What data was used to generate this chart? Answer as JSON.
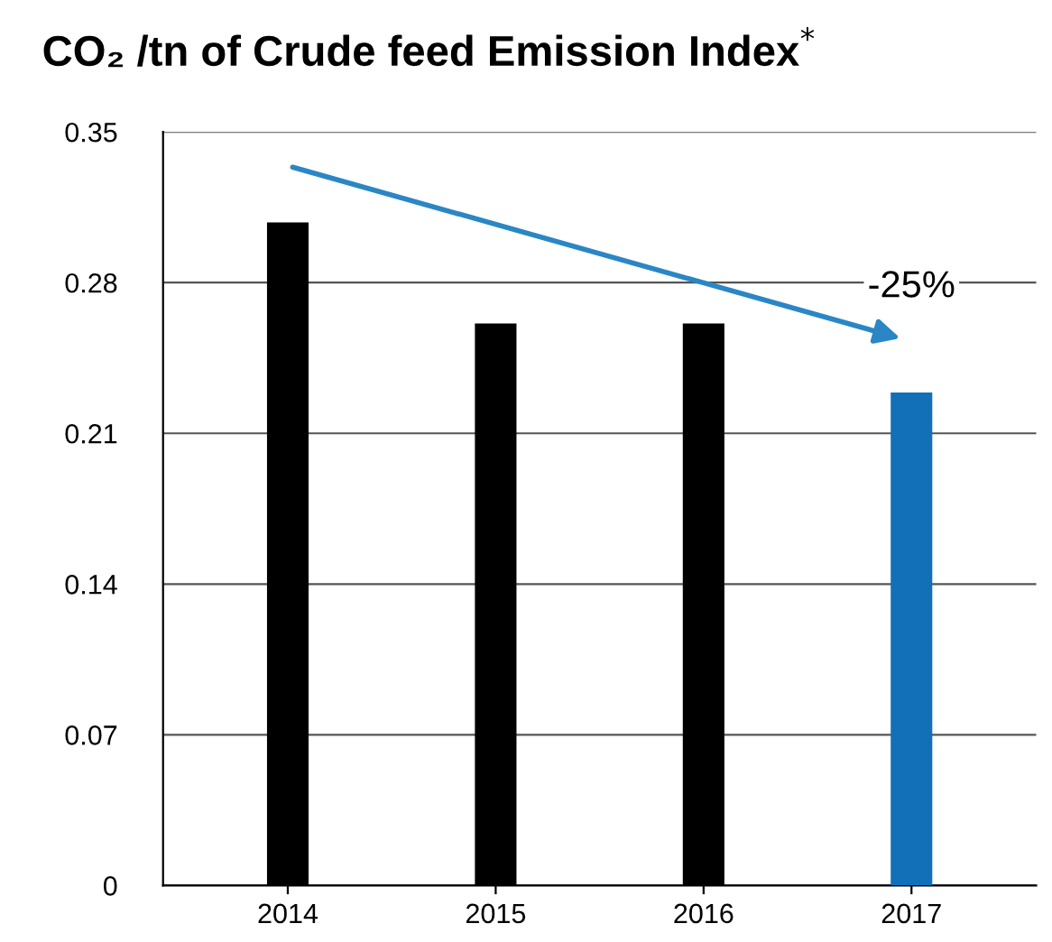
{
  "chart_data": {
    "type": "bar",
    "title": "CO₂ /tn of Crude feed Emission Index$^{*}$",
    "categories": [
      "2014",
      "2015",
      "2016",
      "2017"
    ],
    "values": [
      0.308,
      0.261,
      0.261,
      0.229
    ],
    "colors": [
      "#000000",
      "#000000",
      "#000000",
      "#1170b8"
    ],
    "ylim": [
      0,
      0.35
    ],
    "yticks": [
      {
        "value": 0,
        "label": "0"
      },
      0.07,
      0.14,
      0.21,
      0.28,
      0.35
    ],
    "grid": "y",
    "annotations": [
      {
        "text": "-25%",
        "x": "2017",
        "y": 0.229
      }
    ]
  }
}
